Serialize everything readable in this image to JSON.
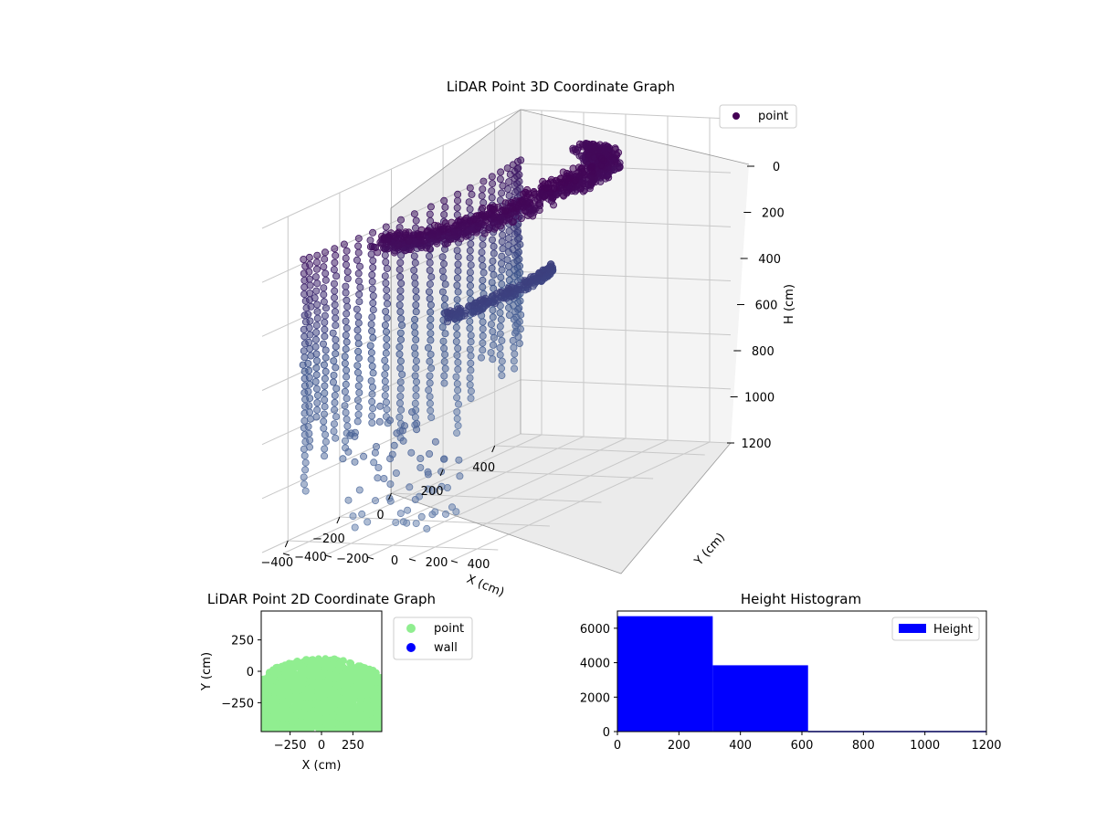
{
  "chart_data": [
    {
      "type": "scatter",
      "projection": "3d",
      "title": "LiDAR Point 3D Coordinate Graph",
      "xlabel": "X (cm)",
      "ylabel": "Y (cm)",
      "zlabel": "H (cm)",
      "xlim": [
        -500,
        500
      ],
      "ylim": [
        -500,
        500
      ],
      "zlim": [
        1200,
        0
      ],
      "x_ticks": [
        -400,
        -200,
        0,
        200,
        400
      ],
      "y_ticks": [
        -400,
        -200,
        0,
        200,
        400
      ],
      "z_ticks": [
        0,
        200,
        400,
        600,
        800,
        1000,
        1200
      ],
      "zaxis_inverted": true,
      "colormap": "viridis (color by height, shallow=dark purple)",
      "marker_color_top": "#440154",
      "marker_color_bottom": "#6b86b0",
      "grid": true,
      "legend": {
        "placement": "upper-right",
        "entries": [
          {
            "label": "point",
            "color": "#440154"
          }
        ]
      },
      "series": [
        {
          "name": "point",
          "description_points": "dense dome-shaped cloud of points, vertical columns descending from 0 to ~1100 cm"
        }
      ]
    },
    {
      "type": "scatter",
      "title": "LiDAR Point 2D Coordinate Graph",
      "xlabel": "X (cm)",
      "ylabel": "Y (cm)",
      "xlim": [
        -480,
        480
      ],
      "ylim": [
        -480,
        480
      ],
      "x_ticks": [
        -250,
        0,
        250
      ],
      "y_ticks": [
        -250,
        0,
        250
      ],
      "legend": {
        "placement": "outside-right",
        "entries": [
          {
            "label": "point",
            "color": "#90ee90"
          },
          {
            "label": "wall",
            "color": "#0000ff"
          }
        ]
      },
      "series": [
        {
          "name": "point",
          "color": "#90ee90"
        },
        {
          "name": "wall",
          "color": "#0000ff"
        }
      ]
    },
    {
      "type": "bar",
      "subtype": "histogram",
      "title": "Height Histogram",
      "xlim": [
        0,
        1200
      ],
      "ylim": [
        0,
        7000
      ],
      "x_ticks": [
        0,
        200,
        400,
        600,
        800,
        1000,
        1200
      ],
      "y_ticks": [
        0,
        2000,
        4000,
        6000
      ],
      "bar_color": "#0000ff",
      "legend": {
        "placement": "upper-right",
        "entries": [
          {
            "label": "Height",
            "color": "#0000ff"
          }
        ]
      },
      "series": [
        {
          "name": "Height",
          "bins": [
            {
              "start": 0,
              "end": 310,
              "count": 6700
            },
            {
              "start": 310,
              "end": 620,
              "count": 3850
            },
            {
              "start": 620,
              "end": 1200,
              "count": 40
            }
          ]
        }
      ]
    }
  ]
}
